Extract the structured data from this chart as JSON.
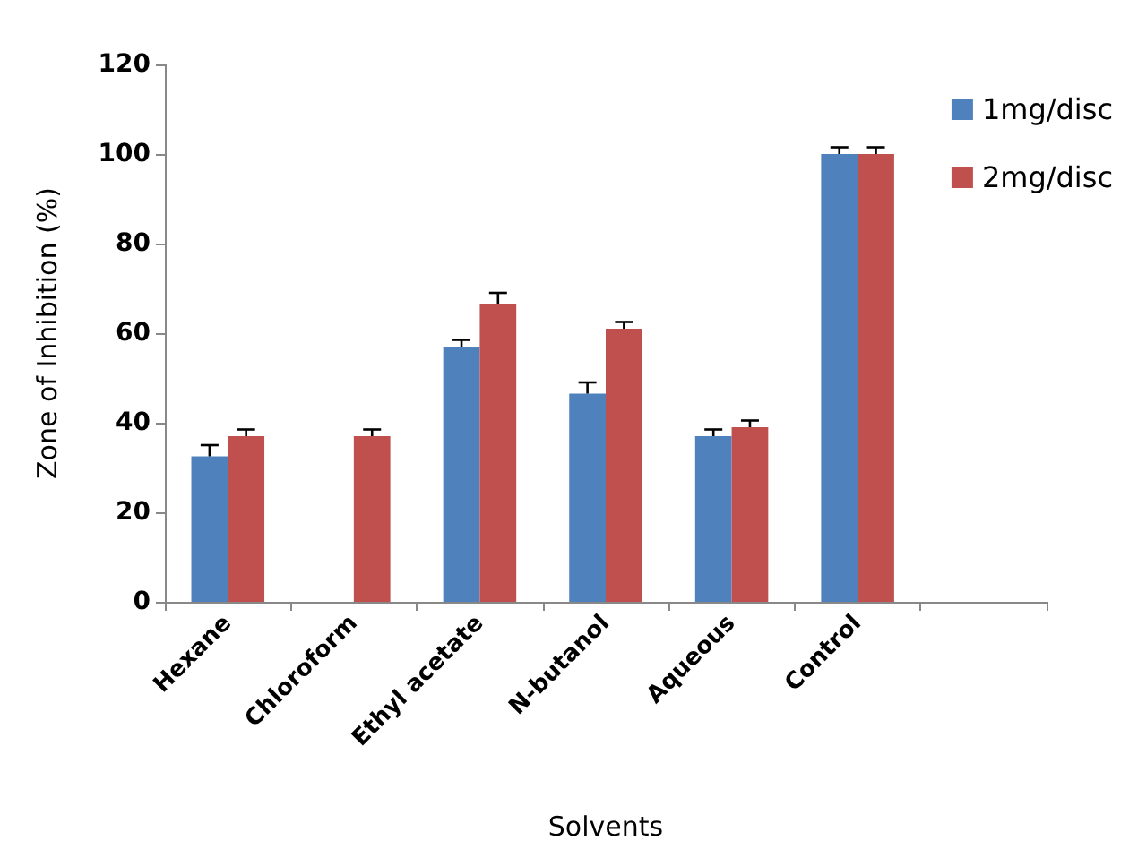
{
  "chart_data": {
    "type": "bar",
    "xlabel": "Solvents",
    "ylabel": "Zone of Inhibition (%)",
    "categories": [
      "Hexane",
      "Chloroform",
      "Ethyl acetate",
      "N-butanol",
      "Aqueous",
      "Control",
      null
    ],
    "series": [
      {
        "name": "1mg/disc",
        "color": "#4f81bd",
        "values": [
          32.5,
          null,
          57,
          46.5,
          37,
          100,
          null
        ],
        "errors": [
          2.5,
          null,
          1.5,
          2.5,
          1.5,
          1.5,
          null
        ]
      },
      {
        "name": "2mg/disc",
        "color": "#c0504d",
        "values": [
          37,
          37,
          66.5,
          61,
          39,
          100,
          null
        ],
        "errors": [
          1.5,
          1.5,
          2.5,
          1.5,
          1.5,
          1.5,
          null
        ]
      }
    ],
    "ylim": [
      0,
      120
    ],
    "yticks": [
      0,
      20,
      40,
      60,
      80,
      100,
      120
    ],
    "grid": false,
    "legend": "top right"
  }
}
